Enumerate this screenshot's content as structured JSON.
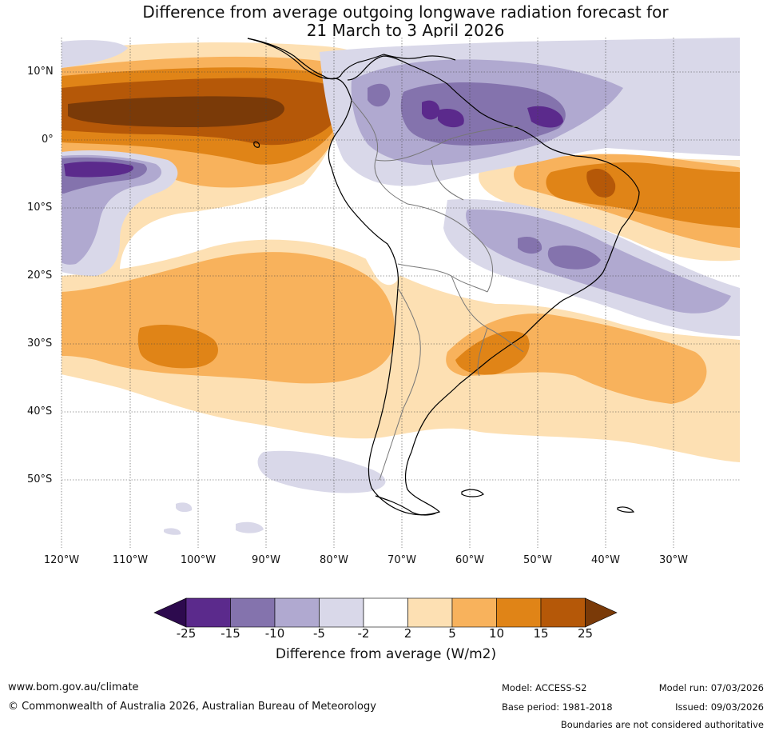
{
  "title": {
    "line1": "Difference from average outgoing longwave radiation forecast for",
    "line2": "21 March to 3 April 2026"
  },
  "axes": {
    "latitudes": [
      "10°N",
      "0°",
      "10°S",
      "20°S",
      "30°S",
      "40°S",
      "50°S"
    ],
    "longitudes": [
      "120°W",
      "110°W",
      "100°W",
      "90°W",
      "80°W",
      "70°W",
      "60°W",
      "50°W",
      "40°W",
      "30°W"
    ]
  },
  "colorbar": {
    "title": "Difference from average (W/m2)",
    "ticks": [
      "-25",
      "-15",
      "-10",
      "-5",
      "-2",
      "2",
      "5",
      "10",
      "15",
      "25"
    ],
    "colors": [
      "#2d0a4e",
      "#5b2a8c",
      "#8473ad",
      "#b0a9d0",
      "#d9d8e9",
      "#ffffff",
      "#fde0b3",
      "#f8b25c",
      "#e08417",
      "#b55808",
      "#7a3a08"
    ]
  },
  "footer": {
    "website": "www.bom.gov.au/climate",
    "copyright": "© Commonwealth of Australia 2026, Australian Bureau of Meteorology",
    "model": "Model: ACCESS-S2",
    "base_period": "Base period: 1981-2018",
    "model_run": "Model run: 07/03/2026",
    "issued": "Issued: 09/03/2026",
    "disclaimer": "Boundaries are not considered authoritative"
  }
}
